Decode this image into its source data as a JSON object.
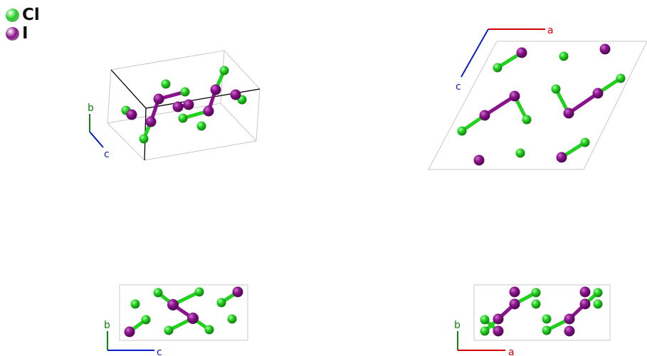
{
  "legend": [
    {
      "label": "Cl",
      "color": "#22d11e"
    },
    {
      "label": "I",
      "color": "#8a138c"
    }
  ],
  "colors": {
    "cl": "#22d11e",
    "i": "#8a138c",
    "axis_a": "#d40000",
    "axis_b": "#138013",
    "axis_c": "#0a1ec8",
    "cell": "#c8c8c8",
    "cell_front": "#000000"
  },
  "axes": {
    "view1": {
      "b": "b",
      "c": "c"
    },
    "view2": {
      "a": "a",
      "c": "c"
    },
    "view3": {
      "b": "b",
      "c": "c"
    },
    "view4": {
      "b": "b",
      "a": "a"
    }
  }
}
